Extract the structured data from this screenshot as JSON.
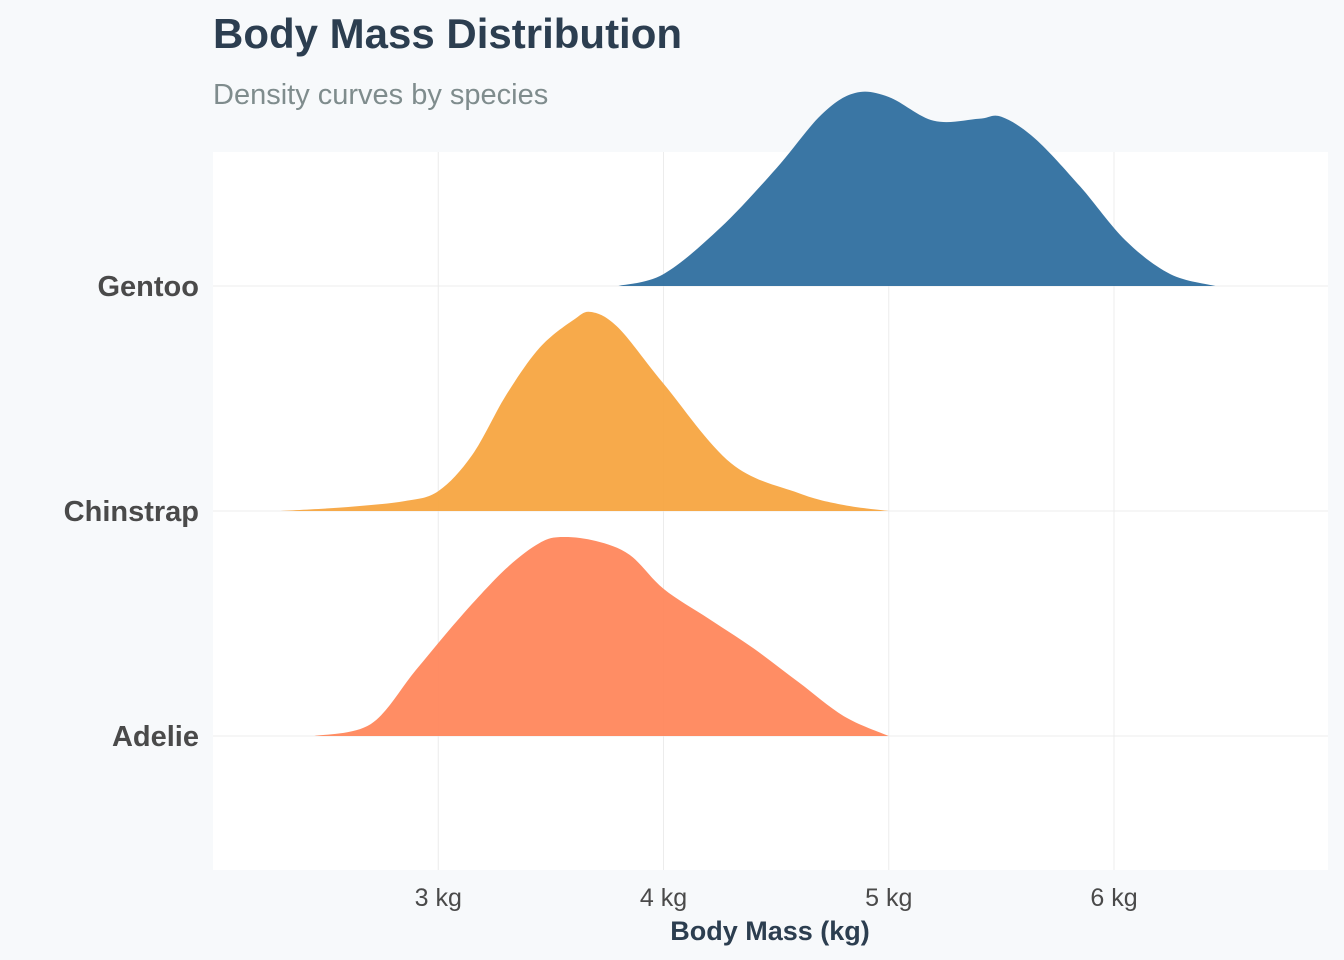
{
  "title": "Body Mass Distribution",
  "subtitle": "Density curves by species",
  "chart_data": {
    "type": "area",
    "subtype": "ridgeline-density",
    "title": "Body Mass Distribution",
    "subtitle": "Density curves by species",
    "xlabel": "Body Mass (kg)",
    "ylabel": "",
    "xlim": [
      2.0,
      6.95
    ],
    "x_ticks": [
      3,
      4,
      5,
      6
    ],
    "x_tick_labels": [
      "3 kg",
      "4 kg",
      "5 kg",
      "6 kg"
    ],
    "categories": [
      "Adelie",
      "Chinstrap",
      "Gentoo"
    ],
    "grid": true,
    "legend": "none",
    "series": [
      {
        "name": "Adelie",
        "color": "#ff875c",
        "x": [
          2.45,
          2.7,
          2.9,
          3.1,
          3.3,
          3.45,
          3.55,
          3.7,
          3.85,
          4.0,
          4.2,
          4.4,
          4.6,
          4.8,
          5.0
        ],
        "density": [
          0.0,
          0.06,
          0.33,
          0.6,
          0.84,
          0.97,
          1.0,
          0.98,
          0.91,
          0.74,
          0.59,
          0.44,
          0.27,
          0.1,
          0.0
        ]
      },
      {
        "name": "Chinstrap",
        "color": "#f7a541",
        "x": [
          2.3,
          2.6,
          2.85,
          3.0,
          3.15,
          3.3,
          3.45,
          3.6,
          3.68,
          3.8,
          4.0,
          4.3,
          4.6,
          4.8,
          5.0
        ],
        "density": [
          0.0,
          0.02,
          0.05,
          0.1,
          0.28,
          0.58,
          0.82,
          0.96,
          1.0,
          0.92,
          0.64,
          0.24,
          0.09,
          0.03,
          0.0
        ]
      },
      {
        "name": "Gentoo",
        "color": "#2f6f9f",
        "x": [
          3.8,
          4.0,
          4.25,
          4.5,
          4.7,
          4.85,
          5.0,
          5.2,
          5.4,
          5.5,
          5.65,
          5.85,
          6.05,
          6.25,
          6.45
        ],
        "density": [
          0.0,
          0.06,
          0.29,
          0.59,
          0.86,
          0.97,
          0.95,
          0.83,
          0.84,
          0.85,
          0.74,
          0.5,
          0.23,
          0.06,
          0.0
        ]
      }
    ]
  }
}
